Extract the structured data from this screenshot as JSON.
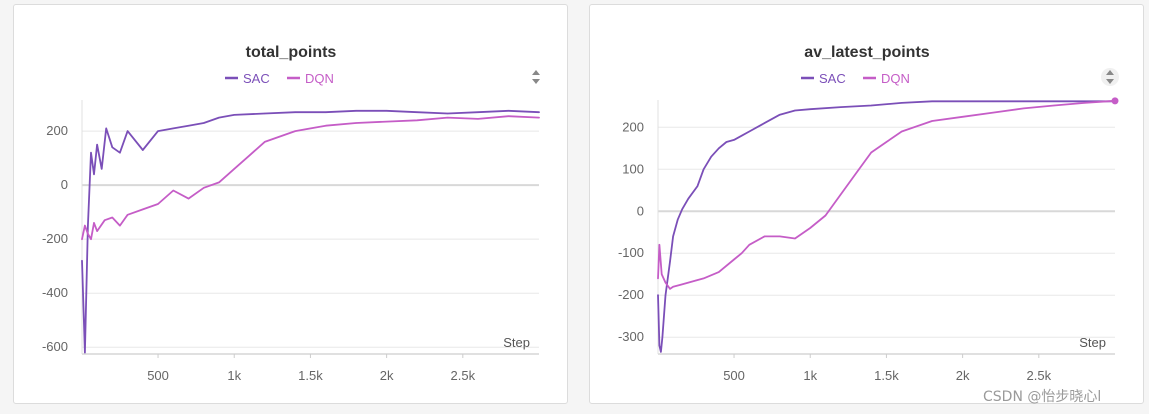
{
  "colors": {
    "SAC": "#7b4fb8",
    "DQN": "#c55dc7",
    "grid": "#e8e8e8",
    "zero": "#d8d8d8"
  },
  "watermark": "CSDN @怡步晓心l",
  "chart_data": [
    {
      "type": "line",
      "title": "total_points",
      "xlabel": "Step",
      "ylabel": "",
      "xlim": [
        1,
        3000
      ],
      "ylim": [
        -625,
        315
      ],
      "yticks": [
        -600,
        -400,
        -200,
        0,
        200
      ],
      "xticks": [
        500,
        1000,
        1500,
        2000,
        2500
      ],
      "xtick_labels": [
        "500",
        "1k",
        "1.5k",
        "2k",
        "2.5k"
      ],
      "legend": "top-center",
      "grid": true,
      "series": [
        {
          "name": "SAC",
          "x": [
            1,
            20,
            40,
            60,
            80,
            100,
            130,
            160,
            200,
            250,
            300,
            400,
            500,
            600,
            700,
            800,
            900,
            1000,
            1200,
            1400,
            1600,
            1800,
            2000,
            2200,
            2400,
            2600,
            2800,
            3000
          ],
          "values": [
            -280,
            -620,
            -150,
            120,
            40,
            150,
            60,
            210,
            140,
            120,
            200,
            130,
            200,
            210,
            220,
            230,
            250,
            260,
            265,
            270,
            270,
            275,
            275,
            270,
            265,
            270,
            275,
            270
          ]
        },
        {
          "name": "DQN",
          "x": [
            1,
            20,
            40,
            60,
            80,
            100,
            150,
            200,
            250,
            300,
            400,
            500,
            600,
            700,
            800,
            900,
            1000,
            1100,
            1200,
            1400,
            1600,
            1800,
            2000,
            2200,
            2400,
            2600,
            2800,
            3000
          ],
          "values": [
            -200,
            -150,
            -180,
            -200,
            -140,
            -170,
            -130,
            -120,
            -150,
            -110,
            -90,
            -70,
            -20,
            -50,
            -10,
            10,
            60,
            110,
            160,
            200,
            220,
            230,
            235,
            240,
            250,
            245,
            255,
            250
          ]
        }
      ]
    },
    {
      "type": "line",
      "title": "av_latest_points",
      "xlabel": "Step",
      "ylabel": "",
      "xlim": [
        1,
        3000
      ],
      "ylim": [
        -340,
        265
      ],
      "yticks": [
        -300,
        -200,
        -100,
        0,
        100,
        200
      ],
      "xticks": [
        500,
        1000,
        1500,
        2000,
        2500
      ],
      "xtick_labels": [
        "500",
        "1k",
        "1.5k",
        "2k",
        "2.5k"
      ],
      "legend": "top-center",
      "grid": true,
      "series": [
        {
          "name": "SAC",
          "x": [
            1,
            10,
            20,
            30,
            50,
            80,
            100,
            130,
            160,
            200,
            260,
            300,
            350,
            400,
            450,
            500,
            550,
            600,
            700,
            800,
            900,
            1000,
            1200,
            1400,
            1600,
            1800,
            2000,
            2200,
            2400,
            2600,
            2800,
            3000
          ],
          "values": [
            -200,
            -320,
            -335,
            -300,
            -200,
            -120,
            -60,
            -20,
            5,
            30,
            60,
            100,
            130,
            150,
            165,
            170,
            180,
            190,
            210,
            230,
            240,
            243,
            248,
            252,
            258,
            262,
            262,
            262,
            262,
            262,
            262,
            262
          ]
        },
        {
          "name": "DQN",
          "x": [
            1,
            10,
            25,
            50,
            80,
            100,
            150,
            200,
            250,
            300,
            400,
            500,
            550,
            600,
            700,
            800,
            900,
            1000,
            1100,
            1200,
            1300,
            1400,
            1500,
            1600,
            1800,
            2000,
            2200,
            2400,
            2600,
            2800,
            3000
          ],
          "values": [
            -160,
            -80,
            -150,
            -170,
            -185,
            -180,
            -175,
            -170,
            -165,
            -160,
            -145,
            -115,
            -100,
            -80,
            -60,
            -60,
            -65,
            -40,
            -10,
            40,
            90,
            140,
            165,
            190,
            215,
            225,
            235,
            245,
            252,
            258,
            263
          ]
        }
      ]
    }
  ]
}
